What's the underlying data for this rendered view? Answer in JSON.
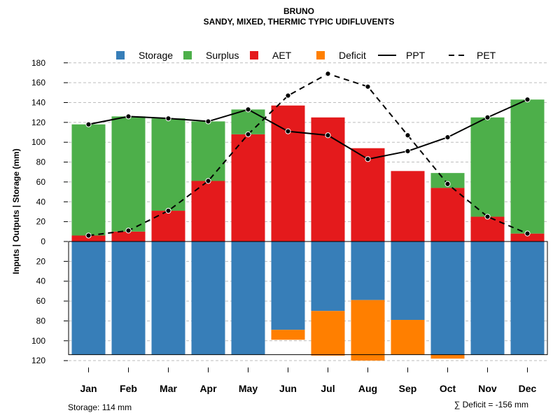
{
  "chart_data": {
    "type": "bar",
    "title": "BRUNO",
    "subtitle": "SANDY, MIXED, THERMIC TYPIC UDIFLUVENTS",
    "ylabel": "Inputs | Outputs | Storage    (mm)",
    "ylim": [
      -120,
      180
    ],
    "yticks": [
      180,
      160,
      140,
      120,
      100,
      80,
      60,
      40,
      20,
      0,
      -20,
      -40,
      -60,
      -80,
      -100,
      -120
    ],
    "ytick_labels": [
      "180",
      "160",
      "140",
      "120",
      "100",
      "80",
      "60",
      "40",
      "20",
      "0",
      "20",
      "40",
      "60",
      "80",
      "100",
      "120"
    ],
    "grid": true,
    "legend_position": "top",
    "categories": [
      "Jan",
      "Feb",
      "Mar",
      "Apr",
      "May",
      "Jun",
      "Jul",
      "Aug",
      "Sep",
      "Oct",
      "Nov",
      "Dec"
    ],
    "series": [
      {
        "name": "Storage",
        "color": "#377EB8",
        "values": [
          114,
          114,
          114,
          114,
          114,
          89,
          70,
          59,
          79,
          114,
          114,
          114
        ]
      },
      {
        "name": "Surplus",
        "color": "#4DAF4A",
        "values": [
          112,
          116,
          93,
          60,
          25,
          0,
          0,
          0,
          0,
          15,
          100,
          135
        ]
      },
      {
        "name": "AET",
        "color": "#E41A1C",
        "values": [
          6,
          10,
          31,
          61,
          108,
          137,
          125,
          94,
          71,
          54,
          25,
          8
        ]
      },
      {
        "name": "Deficit",
        "color": "#FF7F00",
        "values": [
          0,
          0,
          0,
          0,
          0,
          10,
          45,
          61,
          35,
          4,
          0,
          0
        ]
      },
      {
        "name": "PPT",
        "color": "#000000",
        "style": "solid",
        "values": [
          118,
          126,
          124,
          121,
          133,
          111,
          107,
          83,
          91,
          105,
          125,
          143
        ]
      },
      {
        "name": "PET",
        "color": "#000000",
        "style": "dashed",
        "values": [
          6,
          11,
          31,
          61,
          108,
          147,
          169,
          156,
          107,
          58,
          25,
          8
        ]
      }
    ],
    "storage_capacity": 114,
    "storage_note": "Storage: 114 mm",
    "deficit_note": "∑ Deficit = -156 mm"
  }
}
